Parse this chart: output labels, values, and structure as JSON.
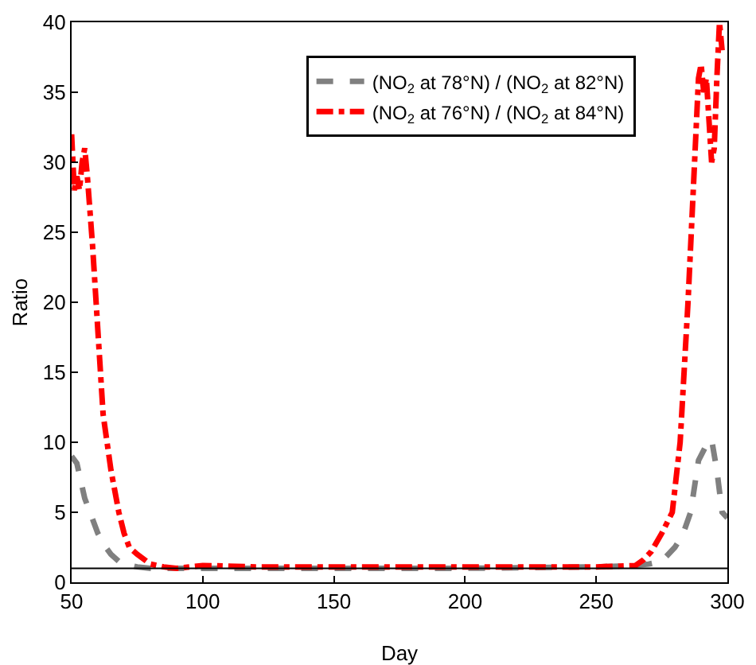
{
  "chart_data": {
    "type": "line",
    "xlabel": "Day",
    "ylabel": "Ratio",
    "xlim": [
      50,
      300
    ],
    "xticks": [
      50,
      100,
      150,
      200,
      250,
      300
    ],
    "ylim": [
      0,
      40
    ],
    "yticks": [
      0,
      5,
      10,
      15,
      20,
      25,
      30,
      35,
      40
    ],
    "grid": false,
    "legend": "top right",
    "marker": "none",
    "series": [
      {
        "name": "(NO$_{2}$ at 78°N) / (NO$_{2}$ at 82°N)",
        "color": "#808080",
        "line_style": "dashed",
        "x": [
          50,
          52,
          55,
          58,
          60,
          63,
          65,
          68,
          70,
          75,
          80,
          90,
          100,
          120,
          150,
          200,
          250,
          265,
          270,
          275,
          280,
          283,
          286,
          289,
          292,
          294,
          296,
          298,
          300
        ],
        "values": [
          9,
          8.5,
          6,
          4.5,
          3.5,
          2.5,
          2,
          1.5,
          1.3,
          1.1,
          1,
          1,
          1,
          1,
          1,
          1,
          1.1,
          1.2,
          1.3,
          1.5,
          2.5,
          3.4,
          5,
          8.7,
          9.8,
          10.2,
          8,
          5,
          4.6
        ]
      },
      {
        "name": "(NO$_{2}$ at 76°N) / (NO$_{2}$ at 84°N)",
        "color": "#ff0000",
        "line_style": "dashed_dot",
        "x": [
          50,
          51,
          52,
          53,
          54,
          55,
          56,
          58,
          60,
          62,
          65,
          68,
          70,
          72,
          75,
          80,
          85,
          90,
          100,
          120,
          150,
          200,
          250,
          265,
          268,
          271,
          275,
          279,
          282,
          285,
          287,
          289,
          290,
          291,
          292,
          293,
          294,
          295,
          296,
          297,
          298
        ],
        "values": [
          32,
          28,
          29,
          28,
          30,
          31,
          29,
          24,
          18,
          12,
          8,
          5,
          3.5,
          2.5,
          2,
          1.3,
          1.1,
          1,
          1.2,
          1.1,
          1.1,
          1.1,
          1.1,
          1.2,
          1.6,
          2.2,
          3.5,
          5,
          10,
          20,
          28,
          36,
          37,
          35,
          36,
          33,
          30,
          31,
          36,
          40,
          38
        ]
      }
    ],
    "ref_lines": [
      {
        "axis": "y",
        "value": 1,
        "color": "#000000",
        "line_style": "solid"
      }
    ]
  }
}
